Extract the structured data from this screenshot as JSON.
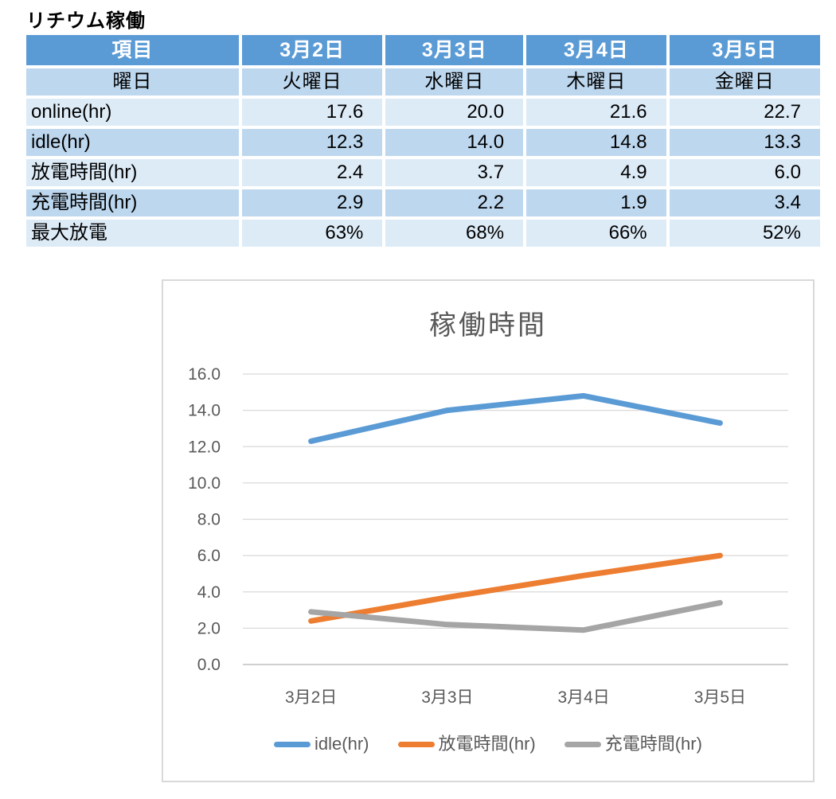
{
  "title": "リチウム稼働",
  "table": {
    "header": [
      "項目",
      "3月2日",
      "3月3日",
      "3月4日",
      "3月5日"
    ],
    "rows": [
      {
        "label": "曜日",
        "values": [
          "火曜日",
          "水曜日",
          "木曜日",
          "金曜日"
        ],
        "value_align": "center",
        "label_align": "center"
      },
      {
        "label": "online(hr)",
        "values": [
          "17.6",
          "20.0",
          "21.6",
          "22.7"
        ],
        "value_align": "right",
        "label_align": "left"
      },
      {
        "label": "idle(hr)",
        "values": [
          "12.3",
          "14.0",
          "14.8",
          "13.3"
        ],
        "value_align": "right",
        "label_align": "left"
      },
      {
        "label": "放電時間(hr)",
        "values": [
          "2.4",
          "3.7",
          "4.9",
          "6.0"
        ],
        "value_align": "right",
        "label_align": "left"
      },
      {
        "label": "充電時間(hr)",
        "values": [
          "2.9",
          "2.2",
          "1.9",
          "3.4"
        ],
        "value_align": "right",
        "label_align": "left"
      },
      {
        "label": "最大放電",
        "values": [
          "63%",
          "68%",
          "66%",
          "52%"
        ],
        "value_align": "right",
        "label_align": "left"
      }
    ],
    "colors": {
      "header_bg": "#5B9BD5",
      "header_text": "#FFFFFF",
      "band_a": "#BDD7EE",
      "band_b": "#DDEBF7",
      "body_text": "#000000"
    }
  },
  "chart_data": {
    "type": "line",
    "title": "稼働時間",
    "categories": [
      "3月2日",
      "3月3日",
      "3月4日",
      "3月5日"
    ],
    "series": [
      {
        "name": "idle(hr)",
        "color": "#5B9BD5",
        "values": [
          12.3,
          14.0,
          14.8,
          13.3
        ]
      },
      {
        "name": "放電時間(hr)",
        "color": "#ED7D31",
        "values": [
          2.4,
          3.7,
          4.9,
          6.0
        ]
      },
      {
        "name": "充電時間(hr)",
        "color": "#A5A5A5",
        "values": [
          2.9,
          2.2,
          1.9,
          3.4
        ]
      }
    ],
    "ylim": [
      0,
      16
    ],
    "ytick_step": 2,
    "ytick_decimals": 1,
    "grid": true,
    "legend_position": "bottom",
    "colors": {
      "grid": "#D9D9D9",
      "axis": "#BFBFBF",
      "tick_text": "#595959",
      "title_text": "#595959",
      "legend_text": "#595959",
      "border": "#D9D9D9"
    }
  }
}
